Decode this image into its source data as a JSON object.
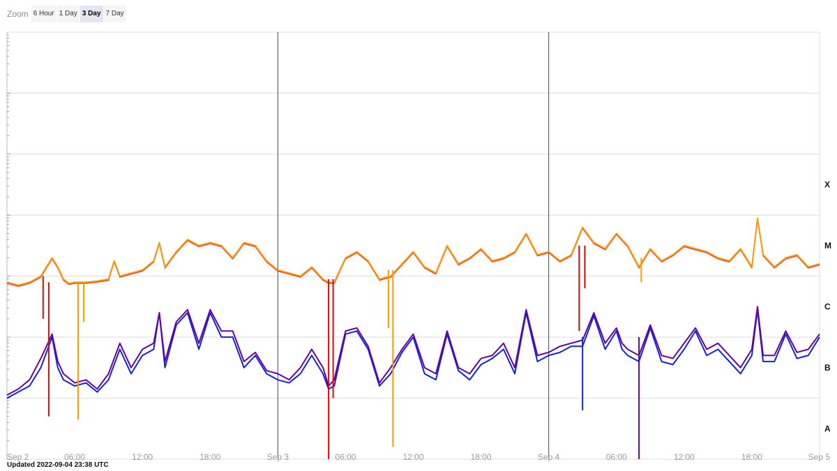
{
  "zoom": {
    "label": "Zoom",
    "options": [
      "6 Hour",
      "1 Day",
      "3 Day",
      "7 Day"
    ],
    "selected": "3 Day"
  },
  "updated_text": "Updated 2022-09-04 23:38 UTC",
  "colors": {
    "long_primary": "#ff9900",
    "long_secondary": "#ee0000",
    "short_primary": "#1122dd",
    "short_secondary": "#6600aa",
    "grid": "#dcdcdc",
    "day_line": "#444444"
  },
  "chart_data": {
    "type": "line",
    "x_axis": {
      "range": [
        "2022-09-02 00:00",
        "2022-09-05 00:00"
      ],
      "day_labels": [
        {
          "x": "2022-09-02 00:00",
          "label": "Sep 2"
        },
        {
          "x": "2022-09-03 00:00",
          "label": "Sep 3"
        },
        {
          "x": "2022-09-04 00:00",
          "label": "Sep 4"
        },
        {
          "x": "2022-09-05 00:00",
          "label": "Sep 5"
        }
      ],
      "hour_labels": [
        {
          "x": "2022-09-02 06:00",
          "label": "06:00"
        },
        {
          "x": "2022-09-02 12:00",
          "label": "12:00"
        },
        {
          "x": "2022-09-02 18:00",
          "label": "18:00"
        },
        {
          "x": "2022-09-03 06:00",
          "label": "06:00"
        },
        {
          "x": "2022-09-03 12:00",
          "label": "12:00"
        },
        {
          "x": "2022-09-03 18:00",
          "label": "18:00"
        },
        {
          "x": "2022-09-04 06:00",
          "label": "06:00"
        },
        {
          "x": "2022-09-04 12:00",
          "label": "12:00"
        },
        {
          "x": "2022-09-04 18:00",
          "label": "18:00"
        }
      ]
    },
    "y_axis": {
      "scale": "log",
      "range": [
        -9,
        -2
      ]
    },
    "flare_classes": [
      {
        "label": "X",
        "at": -4
      },
      {
        "label": "M",
        "at": -5
      },
      {
        "label": "C",
        "at": -6
      },
      {
        "label": "B",
        "at": -7
      },
      {
        "label": "A",
        "at": -8
      }
    ],
    "series": [
      {
        "key": "long_primary",
        "x_hours": [
          0,
          1,
          2,
          3,
          4,
          4.5,
          5,
          5.5,
          6,
          7,
          8,
          9,
          9.5,
          10,
          11,
          12,
          13,
          13.5,
          14,
          15,
          16,
          17,
          18,
          19,
          20,
          21,
          22,
          23,
          24,
          25,
          26,
          27,
          28,
          28.5,
          29,
          30,
          31,
          32,
          33,
          34,
          35,
          36,
          37,
          38,
          39,
          40,
          41,
          42,
          43,
          44,
          45,
          46,
          47,
          48,
          49,
          50,
          51,
          52,
          53,
          54,
          54.5,
          55,
          56,
          57,
          58,
          59,
          60,
          61,
          62,
          63,
          64,
          65,
          66,
          66.5,
          67,
          68,
          69,
          70,
          71,
          72
        ],
        "log_values": [
          -6.1,
          -6.15,
          -6.1,
          -6.0,
          -5.7,
          -5.85,
          -6.05,
          -6.12,
          -6.1,
          -6.1,
          -6.08,
          -6.05,
          -5.75,
          -6.0,
          -5.95,
          -5.9,
          -5.75,
          -5.45,
          -5.85,
          -5.6,
          -5.4,
          -5.5,
          -5.45,
          -5.5,
          -5.7,
          -5.45,
          -5.5,
          -5.75,
          -5.9,
          -5.95,
          -6.0,
          -5.85,
          -6.05,
          -6.1,
          -6.1,
          -5.7,
          -5.6,
          -5.75,
          -6.05,
          -6.0,
          -5.8,
          -5.6,
          -5.85,
          -5.95,
          -5.5,
          -5.8,
          -5.7,
          -5.55,
          -5.75,
          -5.7,
          -5.6,
          -5.3,
          -5.65,
          -5.6,
          -5.75,
          -5.65,
          -5.2,
          -5.45,
          -5.55,
          -5.3,
          -5.4,
          -5.5,
          -5.85,
          -5.55,
          -5.75,
          -5.65,
          -5.5,
          -5.55,
          -5.6,
          -5.7,
          -5.75,
          -5.55,
          -5.85,
          -5.05,
          -5.65,
          -5.85,
          -5.7,
          -5.65,
          -5.85,
          -5.8,
          -5.65
        ]
      },
      {
        "key": "short_primary",
        "x_hours": [
          0,
          1,
          2,
          3,
          4,
          4.5,
          5,
          6,
          7,
          8,
          9,
          10,
          11,
          12,
          13,
          13.5,
          14,
          15,
          16,
          17,
          18,
          19,
          20,
          21,
          22,
          23,
          24,
          25,
          26,
          27,
          28,
          28.5,
          29,
          30,
          31,
          32,
          33,
          34,
          35,
          36,
          37,
          38,
          39,
          40,
          41,
          42,
          43,
          44,
          45,
          46,
          47,
          48,
          49,
          50,
          51,
          52,
          53,
          54,
          54.5,
          55,
          56,
          57,
          58,
          59,
          60,
          61,
          62,
          63,
          64,
          65,
          66,
          66.5,
          67,
          68,
          69,
          70,
          71,
          72
        ],
        "log_values": [
          -8.0,
          -7.9,
          -7.8,
          -7.5,
          -7.0,
          -7.5,
          -7.7,
          -7.8,
          -7.75,
          -7.9,
          -7.7,
          -7.2,
          -7.6,
          -7.3,
          -7.2,
          -6.6,
          -7.5,
          -6.8,
          -6.6,
          -7.2,
          -6.6,
          -7.0,
          -7.0,
          -7.5,
          -7.3,
          -7.6,
          -7.7,
          -7.75,
          -7.6,
          -7.3,
          -7.6,
          -7.85,
          -7.8,
          -6.95,
          -6.9,
          -7.2,
          -7.8,
          -7.6,
          -7.25,
          -7.0,
          -7.6,
          -7.7,
          -6.95,
          -7.55,
          -7.7,
          -7.45,
          -7.35,
          -7.2,
          -7.6,
          -6.6,
          -7.4,
          -7.3,
          -7.25,
          -7.15,
          -7.15,
          -6.65,
          -7.2,
          -6.9,
          -7.2,
          -7.3,
          -7.4,
          -6.85,
          -7.4,
          -7.45,
          -7.2,
          -6.9,
          -7.3,
          -7.2,
          -7.4,
          -7.6,
          -7.3,
          -6.55,
          -7.4,
          -7.4,
          -6.95,
          -7.35,
          -7.3,
          -7.0
        ]
      },
      {
        "key": "short_secondary",
        "x_hours": [
          0,
          1,
          2,
          3,
          4,
          4.5,
          5,
          6,
          7,
          8,
          9,
          10,
          11,
          12,
          13,
          13.5,
          14,
          15,
          16,
          17,
          18,
          19,
          20,
          21,
          22,
          23,
          24,
          25,
          26,
          27,
          28,
          28.5,
          29,
          30,
          31,
          32,
          33,
          34,
          35,
          36,
          37,
          38,
          39,
          40,
          41,
          42,
          43,
          44,
          45,
          46,
          47,
          48,
          49,
          50,
          51,
          52,
          53,
          54,
          54.5,
          55,
          56,
          57,
          58,
          59,
          60,
          61,
          62,
          63,
          64,
          65,
          66,
          66.5,
          67,
          68,
          69,
          70,
          71,
          72
        ],
        "log_values": [
          -7.95,
          -7.85,
          -7.7,
          -7.35,
          -6.95,
          -7.4,
          -7.6,
          -7.75,
          -7.7,
          -7.85,
          -7.6,
          -7.1,
          -7.5,
          -7.2,
          -7.1,
          -6.6,
          -7.4,
          -6.75,
          -6.55,
          -7.1,
          -6.55,
          -6.9,
          -6.9,
          -7.4,
          -7.25,
          -7.55,
          -7.6,
          -7.7,
          -7.5,
          -7.2,
          -7.5,
          -7.8,
          -7.7,
          -6.9,
          -6.85,
          -7.15,
          -7.75,
          -7.5,
          -7.2,
          -6.95,
          -7.5,
          -7.6,
          -6.9,
          -7.5,
          -7.6,
          -7.35,
          -7.3,
          -7.1,
          -7.5,
          -6.55,
          -7.3,
          -7.25,
          -7.15,
          -7.1,
          -7.05,
          -6.6,
          -7.1,
          -6.85,
          -7.1,
          -7.2,
          -7.3,
          -6.8,
          -7.3,
          -7.35,
          -7.1,
          -6.85,
          -7.2,
          -7.1,
          -7.3,
          -7.5,
          -7.2,
          -6.5,
          -7.3,
          -7.3,
          -6.9,
          -7.25,
          -7.2,
          -6.95
        ]
      }
    ],
    "spikes": [
      {
        "series": "long_secondary",
        "x_hour": 3.2,
        "from": -6.0,
        "to": -6.7
      },
      {
        "series": "long_secondary",
        "x_hour": 3.7,
        "from": -6.1,
        "to": -8.3
      },
      {
        "series": "long_primary",
        "x_hour": 6.3,
        "from": -6.1,
        "to": -8.35
      },
      {
        "series": "long_primary",
        "x_hour": 6.8,
        "from": -6.1,
        "to": -6.75
      },
      {
        "series": "long_secondary",
        "x_hour": 28.5,
        "from": -6.05,
        "to": -9.0
      },
      {
        "series": "long_secondary",
        "x_hour": 28.9,
        "from": -6.05,
        "to": -8.0
      },
      {
        "series": "long_primary",
        "x_hour": 33.8,
        "from": -5.9,
        "to": -6.85
      },
      {
        "series": "long_primary",
        "x_hour": 34.2,
        "from": -5.9,
        "to": -8.8
      },
      {
        "series": "long_secondary",
        "x_hour": 50.7,
        "from": -5.5,
        "to": -6.9
      },
      {
        "series": "long_secondary",
        "x_hour": 51.2,
        "from": -5.5,
        "to": -6.2
      },
      {
        "series": "long_primary",
        "x_hour": 56.2,
        "from": -5.7,
        "to": -6.1
      },
      {
        "series": "short_primary",
        "x_hour": 51.0,
        "from": -7.0,
        "to": -8.2
      },
      {
        "series": "short_secondary",
        "x_hour": 56.0,
        "from": -7.0,
        "to": -9.0
      }
    ]
  }
}
